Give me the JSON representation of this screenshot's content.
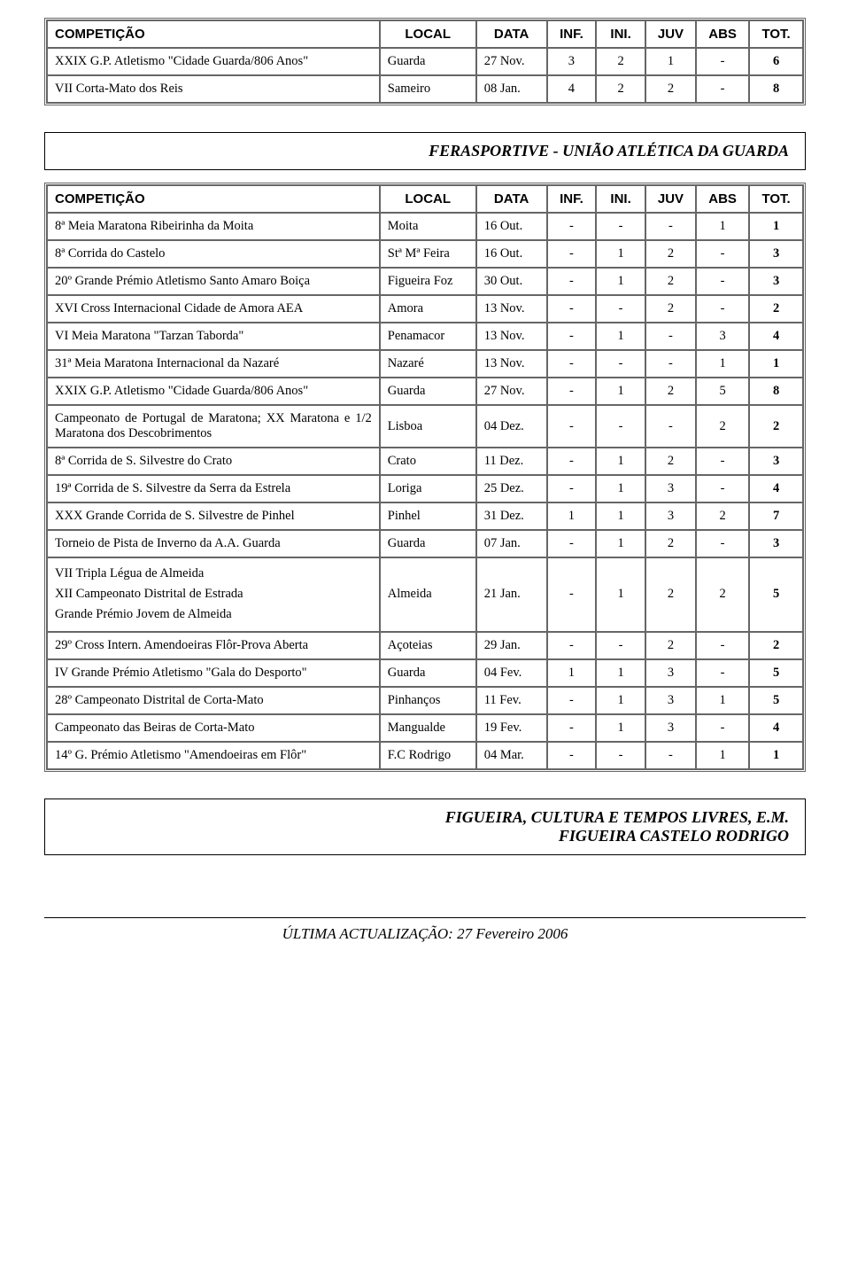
{
  "headers": {
    "comp": "COMPETIÇÃO",
    "loc": "LOCAL",
    "date": "DATA",
    "inf": "INF.",
    "ini": "INI.",
    "juv": "JUV",
    "abs": "ABS",
    "tot": "TOT."
  },
  "table1": {
    "rows": [
      {
        "comp": "XXIX G.P. Atletismo \"Cidade Guarda/806 Anos\"",
        "loc": "Guarda",
        "date": "27 Nov.",
        "inf": "3",
        "ini": "2",
        "juv": "1",
        "abs": "-",
        "tot": "6"
      },
      {
        "comp": "VII Corta-Mato dos Reis",
        "loc": "Sameiro",
        "date": "08 Jan.",
        "inf": "4",
        "ini": "2",
        "juv": "2",
        "abs": "-",
        "tot": "8"
      }
    ]
  },
  "section1_title": "FERASPORTIVE  -  UNIÃO ATLÉTICA DA GUARDA",
  "table2": {
    "rows": [
      {
        "comp": "8ª Meia Maratona Ribeirinha da Moita",
        "loc": "Moita",
        "date": "16 Out.",
        "inf": "-",
        "ini": "-",
        "juv": "-",
        "abs": "1",
        "tot": "1"
      },
      {
        "comp": "8ª Corrida do Castelo",
        "loc": "Stª Mª Feira",
        "date": "16 Out.",
        "inf": "-",
        "ini": "1",
        "juv": "2",
        "abs": "-",
        "tot": "3"
      },
      {
        "comp": "20º Grande Prémio Atletismo Santo Amaro Boiça",
        "loc": "Figueira Foz",
        "date": "30 Out.",
        "inf": "-",
        "ini": "1",
        "juv": "2",
        "abs": "-",
        "tot": "3"
      },
      {
        "comp": "XVI Cross Internacional Cidade de Amora AEA",
        "loc": "Amora",
        "date": "13 Nov.",
        "inf": "-",
        "ini": "-",
        "juv": "2",
        "abs": "-",
        "tot": "2"
      },
      {
        "comp": "VI Meia Maratona \"Tarzan Taborda\"",
        "loc": "Penamacor",
        "date": "13 Nov.",
        "inf": "-",
        "ini": "1",
        "juv": "-",
        "abs": "3",
        "tot": "4"
      },
      {
        "comp": "31ª Meia Maratona Internacional da Nazaré",
        "loc": "Nazaré",
        "date": "13 Nov.",
        "inf": "-",
        "ini": "-",
        "juv": "-",
        "abs": "1",
        "tot": "1"
      },
      {
        "comp": "XXIX G.P. Atletismo \"Cidade Guarda/806 Anos\"",
        "loc": "Guarda",
        "date": "27 Nov.",
        "inf": "-",
        "ini": "1",
        "juv": "2",
        "abs": "5",
        "tot": "8"
      },
      {
        "comp": "Campeonato de Portugal de Maratona; XX Maratona e 1/2 Maratona dos Descobrimentos",
        "loc": "Lisboa",
        "date": "04 Dez.",
        "inf": "-",
        "ini": "-",
        "juv": "-",
        "abs": "2",
        "tot": "2"
      },
      {
        "comp": "8ª Corrida de S. Silvestre do Crato",
        "loc": "Crato",
        "date": "11 Dez.",
        "inf": "-",
        "ini": "1",
        "juv": "2",
        "abs": "-",
        "tot": "3"
      },
      {
        "comp": "19ª Corrida de S. Silvestre da Serra da Estrela",
        "loc": "Loriga",
        "date": "25 Dez.",
        "inf": "-",
        "ini": "1",
        "juv": "3",
        "abs": "-",
        "tot": "4"
      },
      {
        "comp": "XXX Grande Corrida de S. Silvestre de Pinhel",
        "loc": "Pinhel",
        "date": "31 Dez.",
        "inf": "1",
        "ini": "1",
        "juv": "3",
        "abs": "2",
        "tot": "7"
      },
      {
        "comp": "Torneio de Pista de Inverno da A.A. Guarda",
        "loc": "Guarda",
        "date": "07 Jan.",
        "inf": "-",
        "ini": "1",
        "juv": "2",
        "abs": "-",
        "tot": "3"
      },
      {
        "comp": "VII Tripla Légua de Almeida\nXII Campeonato Distrital de Estrada\nGrande Prémio Jovem de Almeida",
        "loc": "Almeida",
        "date": "21 Jan.",
        "inf": "-",
        "ini": "1",
        "juv": "2",
        "abs": "2",
        "tot": "5"
      },
      {
        "comp": "29º Cross Intern. Amendoeiras Flôr-Prova Aberta",
        "loc": "Açoteias",
        "date": "29 Jan.",
        "inf": "-",
        "ini": "-",
        "juv": "2",
        "abs": "-",
        "tot": "2"
      },
      {
        "comp": "IV Grande Prémio Atletismo \"Gala do Desporto\"",
        "loc": "Guarda",
        "date": "04 Fev.",
        "inf": "1",
        "ini": "1",
        "juv": "3",
        "abs": "-",
        "tot": "5"
      },
      {
        "comp": "28º Campeonato Distrital de Corta-Mato",
        "loc": "Pinhanços",
        "date": "11 Fev.",
        "inf": "-",
        "ini": "1",
        "juv": "3",
        "abs": "1",
        "tot": "5"
      },
      {
        "comp": "Campeonato das Beiras de Corta-Mato",
        "loc": "Mangualde",
        "date": "19 Fev.",
        "inf": "-",
        "ini": "1",
        "juv": "3",
        "abs": "-",
        "tot": "4"
      },
      {
        "comp": "14º G. Prémio Atletismo \"Amendoeiras em Flôr\"",
        "loc": "F.C Rodrigo",
        "date": "04 Mar.",
        "inf": "-",
        "ini": "-",
        "juv": "-",
        "abs": "1",
        "tot": "1"
      }
    ]
  },
  "section2_title_line1": "FIGUEIRA, CULTURA E TEMPOS LIVRES, E.M.",
  "section2_title_line2": "FIGUEIRA CASTELO RODRIGO",
  "footer_prefix": "ÚLTIMA ACTUALIZAÇÃO:  ",
  "footer_date": "27 Fevereiro 2006"
}
